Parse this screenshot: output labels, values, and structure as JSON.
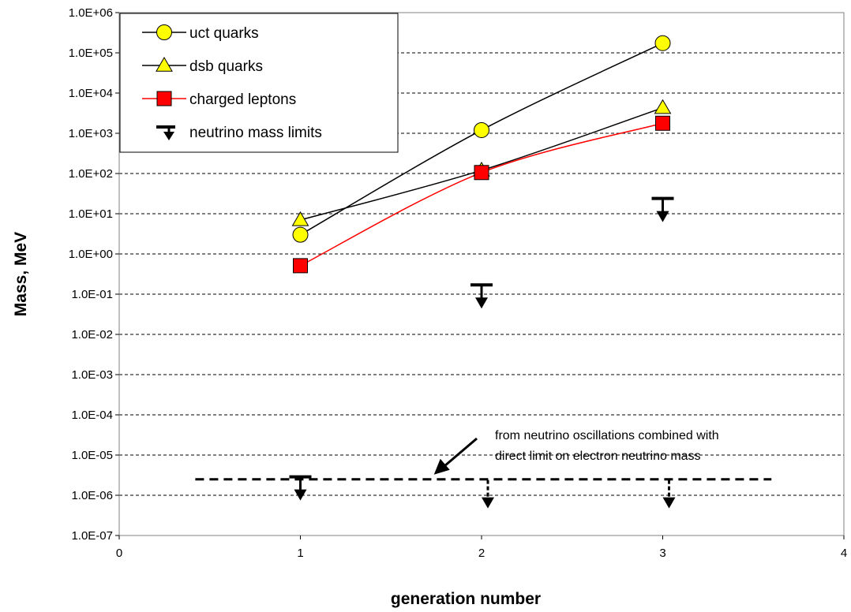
{
  "chart_data": {
    "type": "scatter",
    "title": "",
    "xlabel": "generation number",
    "ylabel": "Mass, MeV",
    "xlim": [
      0,
      4
    ],
    "ylim": [
      1e-07,
      1000000.0
    ],
    "yscale": "log",
    "grid": {
      "y_major": true,
      "x_major": false,
      "style": "dashed"
    },
    "x_tick_labels": [
      "0",
      "1",
      "2",
      "3",
      "4"
    ],
    "y_tick_labels": [
      "1.0E-07",
      "1.0E-06",
      "1.0E-05",
      "1.0E-04",
      "1.0E-03",
      "1.0E-02",
      "1.0E-01",
      "1.0E+00",
      "1.0E+01",
      "1.0E+02",
      "1.0E+03",
      "1.0E+04",
      "1.0E+05",
      "1.0E+06"
    ],
    "legend_position": "top-left",
    "series": [
      {
        "name": "uct quarks",
        "marker": "circle",
        "color": "#ffff00",
        "line_color": "#000000",
        "x": [
          1,
          2,
          3
        ],
        "y": [
          3,
          1200,
          174000
        ]
      },
      {
        "name": "dsb quarks",
        "marker": "triangle",
        "color": "#ffff00",
        "line_color": "#000000",
        "x": [
          1,
          2,
          3
        ],
        "y": [
          7,
          120,
          4300
        ]
      },
      {
        "name": "charged leptons",
        "marker": "square",
        "color": "#ff0000",
        "line_color": "#ff0000",
        "x": [
          1,
          2,
          3
        ],
        "y": [
          0.511,
          105.7,
          1777
        ]
      },
      {
        "name": "neutrino mass limits",
        "marker": "upper-limit-arrow",
        "color": "#000000",
        "x": [
          1,
          2,
          3
        ],
        "y": [
          2e-06,
          0.17,
          24
        ]
      }
    ],
    "oscillation_limits": {
      "x": [
        1,
        2,
        3
      ],
      "y": [
        2e-06,
        2e-06,
        2e-06
      ]
    },
    "reference_line": {
      "style": "dashed",
      "y": 2.5e-06,
      "x_range": [
        0.42,
        3.6
      ]
    },
    "annotation": {
      "lines": [
        "from neutrino oscillations combined with",
        "direct limit on electron neutrino mass"
      ],
      "points_to": {
        "x": 1.72,
        "y": 2.5e-06
      }
    }
  }
}
